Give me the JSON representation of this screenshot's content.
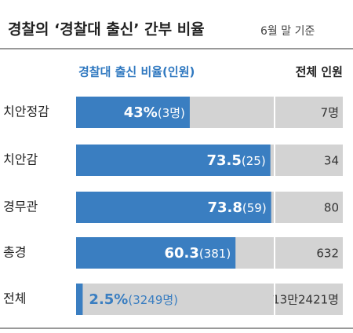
{
  "chart_data": {
    "type": "bar",
    "title": "경찰의 ‘경찰대 출신’ 간부 비율",
    "subtitle": "6월 말 기준",
    "legend": [
      "경찰대 출신 비율(인원)",
      "전체 인원"
    ],
    "categories": [
      "치안정감",
      "치안감",
      "경무관",
      "총경",
      "전체"
    ],
    "values": [
      43,
      73.5,
      73.8,
      60.3,
      2.5
    ],
    "value_labels": [
      "43%",
      "73.5",
      "73.8",
      "60.3",
      "2.5%"
    ],
    "counts": [
      "(3명)",
      "(25)",
      "(59)",
      "(381)",
      "(3249명)"
    ],
    "totals": [
      "7명",
      "34",
      "80",
      "632",
      "13만2421명"
    ],
    "color": "#3a7ec1",
    "background_color": "#d3d3d3",
    "xlim": [
      0,
      100
    ]
  }
}
